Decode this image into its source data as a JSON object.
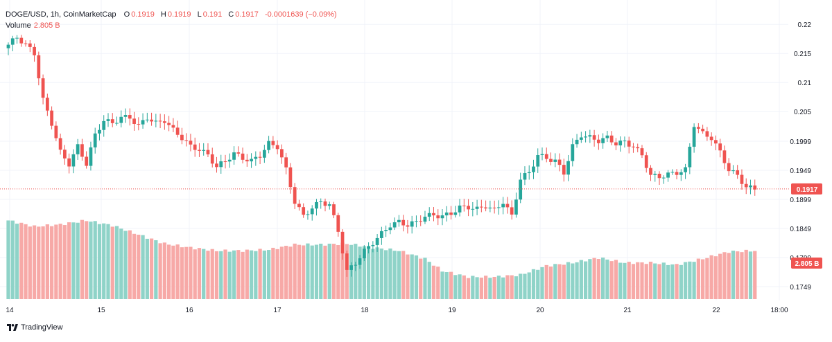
{
  "legend": {
    "symbol": "DOGE/USD, 1h, CoinMarketCap",
    "o_label": "O",
    "o_value": "0.1919",
    "h_label": "H",
    "h_value": "0.1919",
    "l_label": "L",
    "l_value": "0.191",
    "c_label": "C",
    "c_value": "0.1917",
    "change": "-0.0001639 (−0.09%)",
    "volume_label": "Volume",
    "volume_value": "2.805 B"
  },
  "price_badge": "0.1917",
  "volume_badge": "2.805 B",
  "brand": "TradingView",
  "colors": {
    "up": "#26a69a",
    "down": "#ef5350",
    "up_vol": "#8fd3c8",
    "down_vol": "#f7a9a7",
    "grid": "#f0f3fa",
    "axis_text": "#131722"
  },
  "chart_data": {
    "type": "candlestick",
    "title": "DOGE/USD, 1h, CoinMarketCap",
    "y_ticks": [
      "0.22",
      "0.215",
      "0.21",
      "0.205",
      "0.1999",
      "0.1949",
      "0.1899",
      "0.1849",
      "0.1799",
      "0.1749"
    ],
    "x_ticks": [
      "14",
      "15",
      "16",
      "17",
      "18",
      "19",
      "20",
      "21",
      "22",
      "18:00"
    ],
    "ylim": [
      0.173,
      0.223
    ],
    "last_price": 0.1917,
    "close_path": [
      [
        0,
        0.2165
      ],
      [
        2,
        0.2178
      ],
      [
        4,
        0.2165
      ],
      [
        6,
        0.215
      ],
      [
        8,
        0.207
      ],
      [
        10,
        0.203
      ],
      [
        12,
        0.198
      ],
      [
        14,
        0.196
      ],
      [
        16,
        0.199
      ],
      [
        18,
        0.196
      ],
      [
        20,
        0.201
      ],
      [
        22,
        0.2035
      ],
      [
        24,
        0.203
      ],
      [
        26,
        0.204
      ],
      [
        28,
        0.204
      ],
      [
        30,
        0.2025
      ],
      [
        32,
        0.204
      ],
      [
        34,
        0.203
      ],
      [
        36,
        0.2035
      ],
      [
        38,
        0.2018
      ],
      [
        40,
        0.2005
      ],
      [
        42,
        0.199
      ],
      [
        44,
        0.1985
      ],
      [
        46,
        0.1975
      ],
      [
        48,
        0.1955
      ],
      [
        50,
        0.1965
      ],
      [
        52,
        0.1978
      ],
      [
        54,
        0.197
      ],
      [
        56,
        0.1965
      ],
      [
        58,
        0.1975
      ],
      [
        60,
        0.1995
      ],
      [
        62,
        0.199
      ],
      [
        64,
        0.195
      ],
      [
        66,
        0.1895
      ],
      [
        68,
        0.187
      ],
      [
        70,
        0.1885
      ],
      [
        72,
        0.1895
      ],
      [
        74,
        0.189
      ],
      [
        76,
        0.1845
      ],
      [
        78,
        0.1775
      ],
      [
        80,
        0.179
      ],
      [
        82,
        0.181
      ],
      [
        84,
        0.1825
      ],
      [
        86,
        0.184
      ],
      [
        88,
        0.1855
      ],
      [
        90,
        0.186
      ],
      [
        92,
        0.1855
      ],
      [
        94,
        0.186
      ],
      [
        96,
        0.187
      ],
      [
        98,
        0.1872
      ],
      [
        100,
        0.187
      ],
      [
        102,
        0.1875
      ],
      [
        104,
        0.1885
      ],
      [
        106,
        0.1886
      ],
      [
        108,
        0.1882
      ],
      [
        110,
        0.1888
      ],
      [
        112,
        0.188
      ],
      [
        114,
        0.1895
      ],
      [
        116,
        0.187
      ],
      [
        118,
        0.1935
      ],
      [
        120,
        0.1945
      ],
      [
        122,
        0.1975
      ],
      [
        124,
        0.197
      ],
      [
        126,
        0.1965
      ],
      [
        128,
        0.1945
      ],
      [
        130,
        0.199
      ],
      [
        132,
        0.201
      ],
      [
        134,
        0.2005
      ],
      [
        136,
        0.2
      ],
      [
        138,
        0.2005
      ],
      [
        140,
        0.1995
      ],
      [
        142,
        0.1998
      ],
      [
        144,
        0.199
      ],
      [
        146,
        0.1975
      ],
      [
        148,
        0.194
      ],
      [
        150,
        0.1938
      ],
      [
        152,
        0.1942
      ],
      [
        154,
        0.1945
      ],
      [
        156,
        0.195
      ],
      [
        158,
        0.2028
      ],
      [
        160,
        0.2012
      ],
      [
        162,
        0.2005
      ],
      [
        164,
        0.198
      ],
      [
        166,
        0.195
      ],
      [
        168,
        0.194
      ],
      [
        170,
        0.192
      ],
      [
        172,
        0.1917
      ]
    ],
    "volume_path": [
      [
        0,
        0.78
      ],
      [
        6,
        0.72
      ],
      [
        12,
        0.74
      ],
      [
        18,
        0.78
      ],
      [
        24,
        0.73
      ],
      [
        30,
        0.64
      ],
      [
        36,
        0.55
      ],
      [
        42,
        0.51
      ],
      [
        48,
        0.48
      ],
      [
        54,
        0.48
      ],
      [
        60,
        0.49
      ],
      [
        66,
        0.54
      ],
      [
        72,
        0.54
      ],
      [
        78,
        0.55
      ],
      [
        84,
        0.51
      ],
      [
        90,
        0.48
      ],
      [
        96,
        0.4
      ],
      [
        100,
        0.28
      ],
      [
        106,
        0.22
      ],
      [
        112,
        0.22
      ],
      [
        118,
        0.24
      ],
      [
        124,
        0.33
      ],
      [
        130,
        0.36
      ],
      [
        136,
        0.41
      ],
      [
        142,
        0.36
      ],
      [
        148,
        0.36
      ],
      [
        154,
        0.34
      ],
      [
        160,
        0.4
      ],
      [
        166,
        0.47
      ],
      [
        172,
        0.48
      ]
    ]
  }
}
